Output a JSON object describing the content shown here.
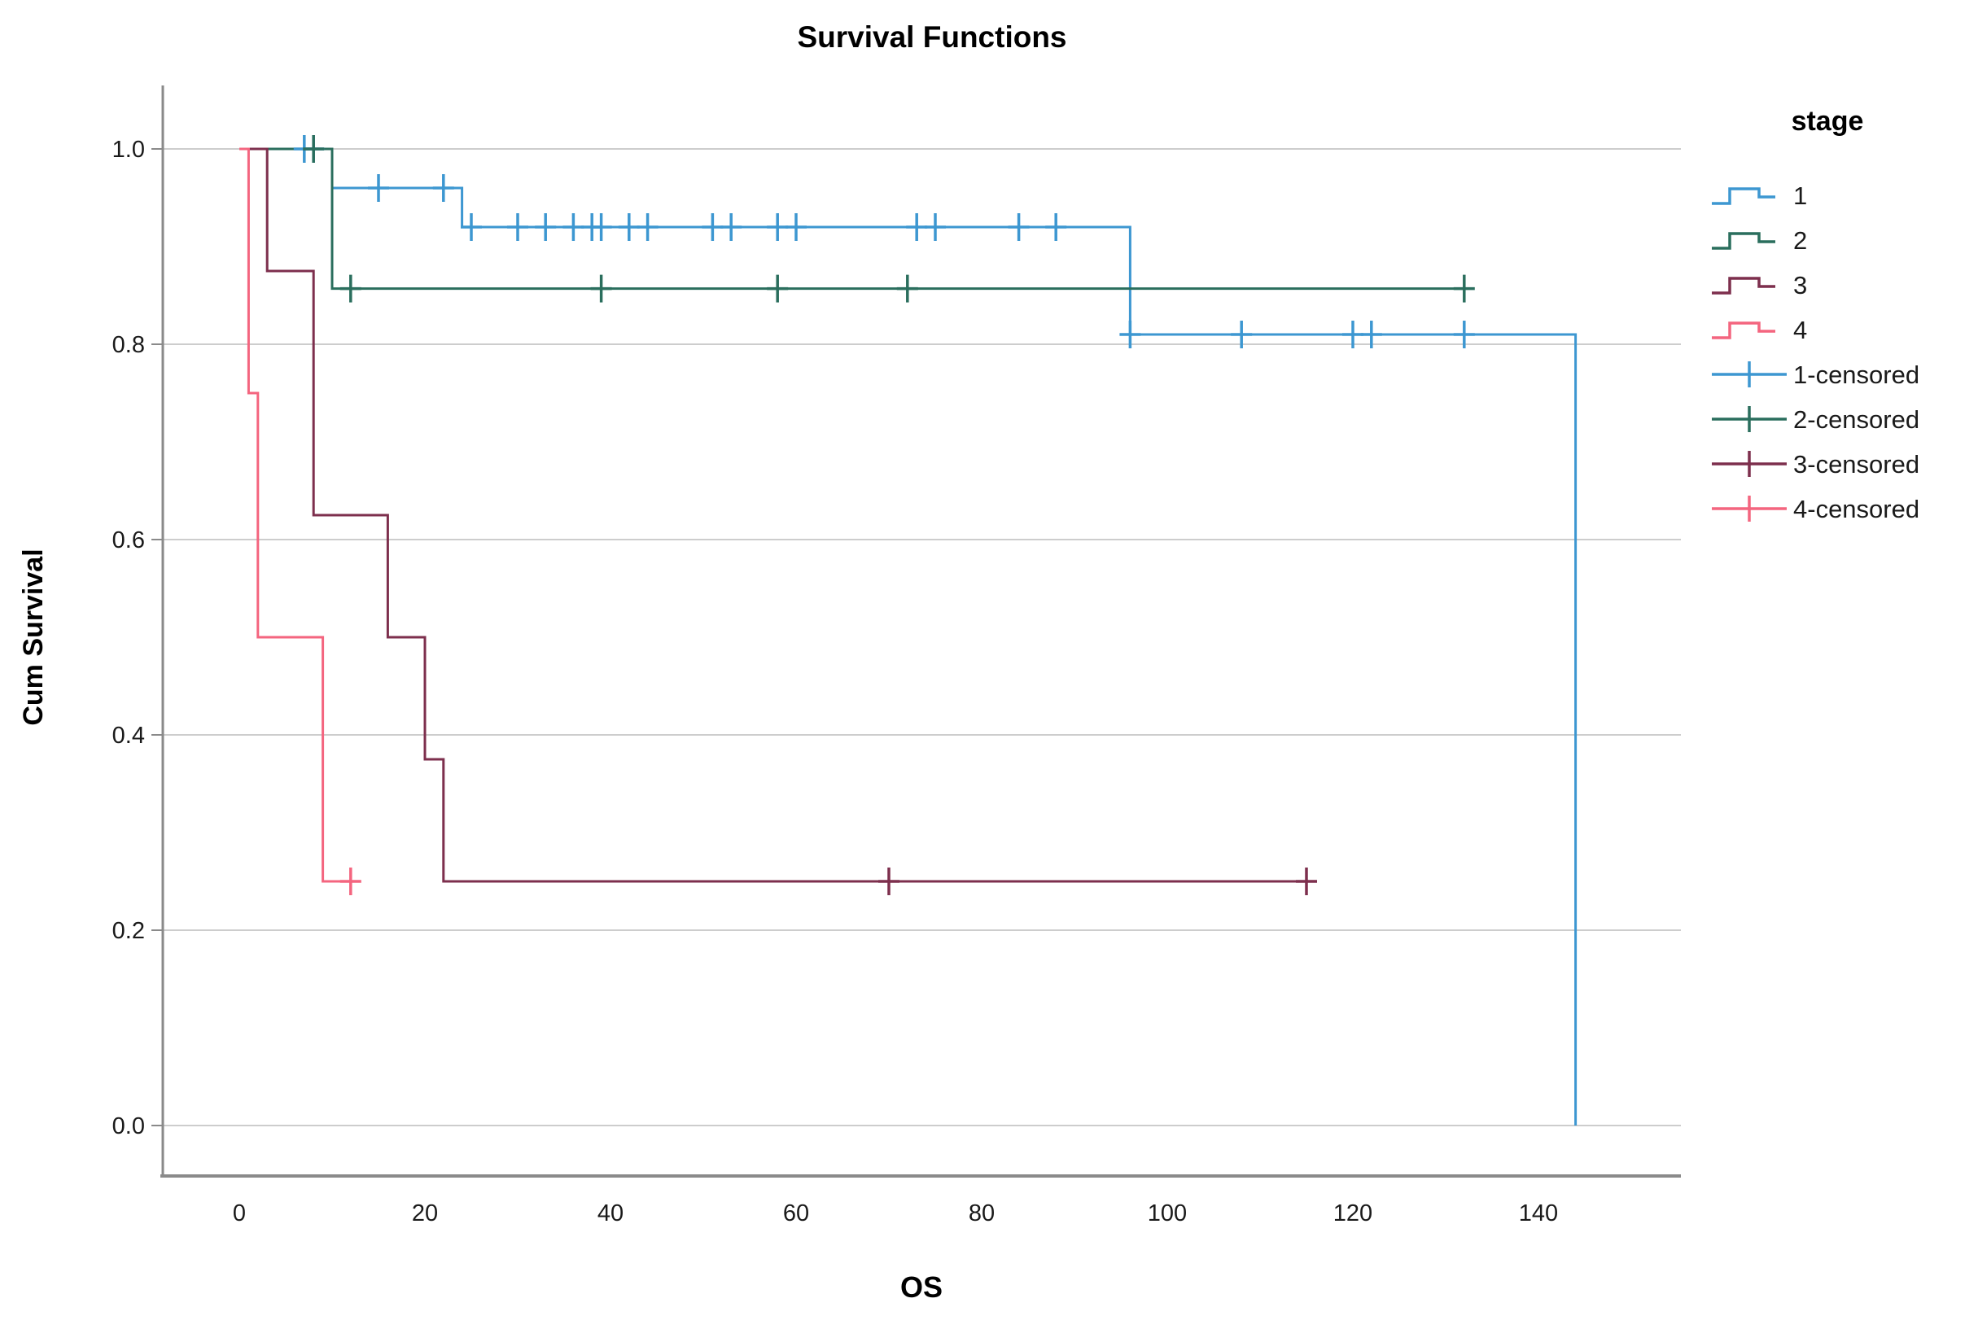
{
  "title": "Survival Functions",
  "x_axis": {
    "label": "OS",
    "ticks": [
      "0",
      "20",
      "40",
      "60",
      "80",
      "100",
      "120",
      "140"
    ],
    "tick_values": [
      0,
      20,
      40,
      60,
      80,
      100,
      120,
      140
    ]
  },
  "y_axis": {
    "label": "Cum Survival",
    "ticks": [
      "0.0",
      "0.2",
      "0.4",
      "0.6",
      "0.8",
      "1.0"
    ],
    "tick_values": [
      0.0,
      0.2,
      0.4,
      0.6,
      0.8,
      1.0
    ]
  },
  "legend": {
    "title": "stage",
    "entries": [
      {
        "label": "1",
        "color": "#3d97d1",
        "type": "step"
      },
      {
        "label": "2",
        "color": "#2a6e5d",
        "type": "step"
      },
      {
        "label": "3",
        "color": "#7d2f4d",
        "type": "step"
      },
      {
        "label": "4",
        "color": "#f4657f",
        "type": "step"
      },
      {
        "label": "1-censored",
        "color": "#3d97d1",
        "type": "censor"
      },
      {
        "label": "2-censored",
        "color": "#2a6e5d",
        "type": "censor"
      },
      {
        "label": "3-censored",
        "color": "#7d2f4d",
        "type": "censor"
      },
      {
        "label": "4-censored",
        "color": "#f4657f",
        "type": "censor"
      }
    ]
  },
  "colors": {
    "stage1": "#3d97d1",
    "stage2": "#2a6e5d",
    "stage3": "#7d2f4d",
    "stage4": "#f4657f",
    "gridline": "#c6c6c6",
    "axis": "#8a8a8a",
    "text": "#1a1a1a"
  },
  "chart_data": {
    "type": "line",
    "subtype": "kaplan-meier-step",
    "title": "Survival Functions",
    "xlabel": "OS",
    "ylabel": "Cum Survival",
    "xlim": [
      -8.2,
      155.4
    ],
    "ylim": [
      -0.05,
      1.05
    ],
    "grid": "horizontal",
    "legend_position": "right",
    "legend_title": "stage",
    "series": [
      {
        "name": "1",
        "color": "#3d97d1",
        "steps": [
          [
            0,
            1.0
          ],
          [
            10,
            1.0
          ],
          [
            10,
            0.96
          ],
          [
            24,
            0.96
          ],
          [
            24,
            0.92
          ],
          [
            96,
            0.92
          ],
          [
            96,
            0.81
          ],
          [
            144,
            0.81
          ],
          [
            144,
            0.0
          ]
        ],
        "censored": [
          [
            7,
            1.0
          ],
          [
            8,
            1.0
          ],
          [
            15,
            0.96
          ],
          [
            22,
            0.96
          ],
          [
            25,
            0.92
          ],
          [
            30,
            0.92
          ],
          [
            33,
            0.92
          ],
          [
            36,
            0.92
          ],
          [
            38,
            0.92
          ],
          [
            39,
            0.92
          ],
          [
            42,
            0.92
          ],
          [
            44,
            0.92
          ],
          [
            51,
            0.92
          ],
          [
            53,
            0.92
          ],
          [
            58,
            0.92
          ],
          [
            60,
            0.92
          ],
          [
            73,
            0.92
          ],
          [
            75,
            0.92
          ],
          [
            84,
            0.92
          ],
          [
            88,
            0.92
          ],
          [
            96,
            0.81
          ],
          [
            108,
            0.81
          ],
          [
            120,
            0.81
          ],
          [
            122,
            0.81
          ],
          [
            132,
            0.81
          ]
        ]
      },
      {
        "name": "2",
        "color": "#2a6e5d",
        "steps": [
          [
            0,
            1.0
          ],
          [
            10,
            1.0
          ],
          [
            10,
            0.857
          ],
          [
            132,
            0.857
          ]
        ],
        "censored": [
          [
            8,
            1.0
          ],
          [
            12,
            0.857
          ],
          [
            39,
            0.857
          ],
          [
            58,
            0.857
          ],
          [
            72,
            0.857
          ],
          [
            132,
            0.857
          ]
        ]
      },
      {
        "name": "3",
        "color": "#7d2f4d",
        "steps": [
          [
            0,
            1.0
          ],
          [
            3,
            1.0
          ],
          [
            3,
            0.875
          ],
          [
            8,
            0.875
          ],
          [
            8,
            0.625
          ],
          [
            16,
            0.625
          ],
          [
            16,
            0.5
          ],
          [
            20,
            0.5
          ],
          [
            20,
            0.375
          ],
          [
            22,
            0.375
          ],
          [
            22,
            0.25
          ],
          [
            115,
            0.25
          ]
        ],
        "censored": [
          [
            70,
            0.25
          ],
          [
            115,
            0.25
          ]
        ]
      },
      {
        "name": "4",
        "color": "#f4657f",
        "steps": [
          [
            0,
            1.0
          ],
          [
            1,
            1.0
          ],
          [
            1,
            0.75
          ],
          [
            2,
            0.75
          ],
          [
            2,
            0.5
          ],
          [
            9,
            0.5
          ],
          [
            9,
            0.25
          ],
          [
            13,
            0.25
          ]
        ],
        "censored": [
          [
            12,
            0.25
          ]
        ]
      }
    ]
  }
}
